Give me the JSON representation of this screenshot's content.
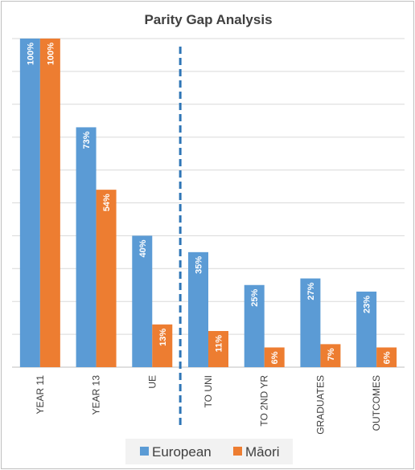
{
  "chart_data": {
    "type": "bar",
    "title": "Parity Gap Analysis",
    "categories": [
      "YEAR 11",
      "YEAR 13",
      "UE",
      "TO UNI",
      "TO 2ND YR",
      "GRADUATES",
      "OUTCOMES"
    ],
    "series": [
      {
        "name": "European",
        "color": "#5b9bd5",
        "values": [
          100,
          73,
          40,
          35,
          25,
          27,
          23
        ]
      },
      {
        "name": "Māori",
        "color": "#ed7d31",
        "values": [
          100,
          54,
          13,
          11,
          6,
          7,
          6
        ]
      }
    ],
    "value_suffix": "%",
    "ylim": [
      0,
      100
    ],
    "grid": true,
    "legend": "bottom",
    "divider_after_category": "UE",
    "divider_color": "#2e75b6"
  }
}
